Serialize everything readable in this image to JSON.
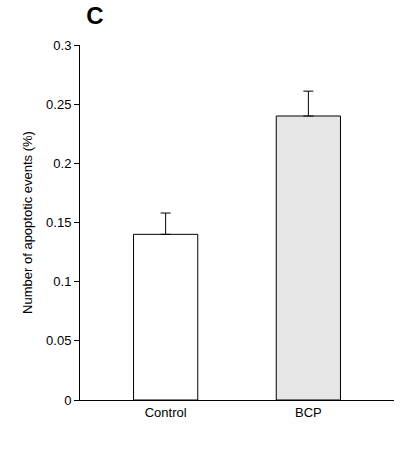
{
  "chart_data": {
    "type": "bar",
    "title": "C",
    "categories": [
      "Control",
      "BCP"
    ],
    "values": [
      0.14,
      0.24
    ],
    "errors": [
      0.018,
      0.021
    ],
    "colors": [
      "#ffffff",
      "#e6e6e6"
    ],
    "y_label": "Number of apoptotic events (%)",
    "ylim": [
      0,
      0.3
    ],
    "yticks": [
      0,
      0.05,
      0.1,
      0.15,
      0.2,
      0.25,
      0.3
    ],
    "grid": false
  }
}
